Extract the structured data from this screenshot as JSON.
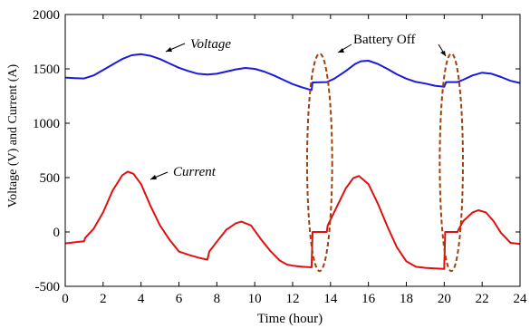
{
  "chart_data": {
    "type": "line",
    "xlabel": "Time (hour)",
    "ylabel": "Voltage (V) and Current (A)",
    "xlim": [
      0,
      24
    ],
    "ylim": [
      -500,
      2000
    ],
    "xticks": [
      0,
      2,
      4,
      6,
      8,
      10,
      12,
      14,
      16,
      18,
      20,
      22,
      24
    ],
    "yticks": [
      -500,
      0,
      500,
      1000,
      1500,
      2000
    ],
    "grid": false,
    "colors": {
      "voltage": "#1a1adc",
      "current": "#e01010",
      "annotation": "#a0400a"
    },
    "series": [
      {
        "name": "Voltage",
        "color": "#1a1adc",
        "points": [
          [
            0,
            1420
          ],
          [
            0.5,
            1415
          ],
          [
            1,
            1412
          ],
          [
            1.5,
            1440
          ],
          [
            2,
            1490
          ],
          [
            2.5,
            1540
          ],
          [
            3,
            1590
          ],
          [
            3.5,
            1625
          ],
          [
            4,
            1635
          ],
          [
            4.5,
            1620
          ],
          [
            5,
            1590
          ],
          [
            5.5,
            1550
          ],
          [
            6,
            1510
          ],
          [
            6.5,
            1480
          ],
          [
            7,
            1455
          ],
          [
            7.5,
            1448
          ],
          [
            8,
            1455
          ],
          [
            8.5,
            1475
          ],
          [
            9,
            1495
          ],
          [
            9.5,
            1508
          ],
          [
            10,
            1500
          ],
          [
            10.5,
            1475
          ],
          [
            11,
            1440
          ],
          [
            11.5,
            1400
          ],
          [
            12,
            1360
          ],
          [
            12.5,
            1330
          ],
          [
            13,
            1305
          ],
          [
            13.05,
            1375
          ],
          [
            13.8,
            1378
          ],
          [
            14.2,
            1410
          ],
          [
            14.8,
            1480
          ],
          [
            15.3,
            1545
          ],
          [
            15.6,
            1570
          ],
          [
            16,
            1575
          ],
          [
            16.5,
            1545
          ],
          [
            17,
            1500
          ],
          [
            17.5,
            1450
          ],
          [
            18,
            1410
          ],
          [
            18.5,
            1380
          ],
          [
            19,
            1365
          ],
          [
            19.5,
            1345
          ],
          [
            20,
            1335
          ],
          [
            20.1,
            1378
          ],
          [
            20.7,
            1378
          ],
          [
            21,
            1400
          ],
          [
            21.5,
            1440
          ],
          [
            22,
            1465
          ],
          [
            22.5,
            1455
          ],
          [
            23,
            1425
          ],
          [
            23.5,
            1390
          ],
          [
            24,
            1370
          ]
        ]
      },
      {
        "name": "Current",
        "color": "#e01010",
        "points": [
          [
            0,
            -105
          ],
          [
            0.5,
            -95
          ],
          [
            1,
            -85
          ],
          [
            1.05,
            -55
          ],
          [
            1.5,
            30
          ],
          [
            2,
            180
          ],
          [
            2.5,
            380
          ],
          [
            3,
            520
          ],
          [
            3.3,
            555
          ],
          [
            3.6,
            535
          ],
          [
            4,
            440
          ],
          [
            4.5,
            240
          ],
          [
            5,
            60
          ],
          [
            5.5,
            -70
          ],
          [
            6,
            -180
          ],
          [
            6.5,
            -210
          ],
          [
            7,
            -235
          ],
          [
            7.5,
            -255
          ],
          [
            7.6,
            -180
          ],
          [
            8,
            -90
          ],
          [
            8.5,
            20
          ],
          [
            9,
            80
          ],
          [
            9.3,
            95
          ],
          [
            9.8,
            60
          ],
          [
            10.3,
            -60
          ],
          [
            10.8,
            -170
          ],
          [
            11.3,
            -260
          ],
          [
            11.7,
            -300
          ],
          [
            12,
            -310
          ],
          [
            12.5,
            -320
          ],
          [
            13,
            -325
          ],
          [
            13.05,
            0
          ],
          [
            13.8,
            0
          ],
          [
            13.85,
            60
          ],
          [
            14.3,
            220
          ],
          [
            14.8,
            400
          ],
          [
            15.2,
            495
          ],
          [
            15.5,
            515
          ],
          [
            16,
            440
          ],
          [
            16.5,
            260
          ],
          [
            17,
            50
          ],
          [
            17.5,
            -140
          ],
          [
            18,
            -270
          ],
          [
            18.5,
            -320
          ],
          [
            19,
            -330
          ],
          [
            19.5,
            -335
          ],
          [
            20,
            -340
          ],
          [
            20.05,
            0
          ],
          [
            20.7,
            0
          ],
          [
            20.75,
            20
          ],
          [
            21,
            100
          ],
          [
            21.5,
            180
          ],
          [
            21.8,
            200
          ],
          [
            22.2,
            180
          ],
          [
            22.6,
            100
          ],
          [
            23,
            -10
          ],
          [
            23.5,
            -100
          ],
          [
            24,
            -110
          ]
        ]
      }
    ],
    "annotations": {
      "voltage_label": "Voltage",
      "current_label": "Current",
      "battery_label": "Battery Off",
      "battery_off_intervals": [
        [
          13.05,
          13.8
        ],
        [
          20.05,
          20.7
        ]
      ]
    }
  }
}
